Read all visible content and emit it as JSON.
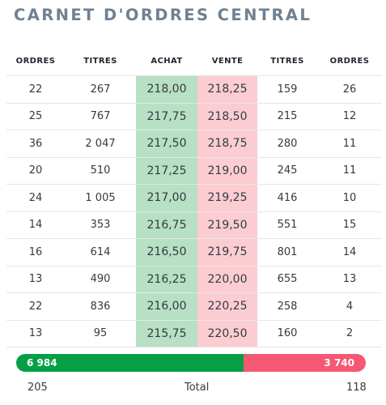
{
  "title": "CARNET D'ORDRES CENTRAL",
  "headers": [
    "ORDRES",
    "TITRES",
    "ACHAT",
    "VENTE",
    "TITRES",
    "ORDRES"
  ],
  "rows": [
    {
      "buy_orders": "22",
      "buy_qty": "267",
      "bid": "218,00",
      "ask": "218,25",
      "sell_qty": "159",
      "sell_orders": "26"
    },
    {
      "buy_orders": "25",
      "buy_qty": "767",
      "bid": "217,75",
      "ask": "218,50",
      "sell_qty": "215",
      "sell_orders": "12"
    },
    {
      "buy_orders": "36",
      "buy_qty": "2 047",
      "bid": "217,50",
      "ask": "218,75",
      "sell_qty": "280",
      "sell_orders": "11"
    },
    {
      "buy_orders": "20",
      "buy_qty": "510",
      "bid": "217,25",
      "ask": "219,00",
      "sell_qty": "245",
      "sell_orders": "11"
    },
    {
      "buy_orders": "24",
      "buy_qty": "1 005",
      "bid": "217,00",
      "ask": "219,25",
      "sell_qty": "416",
      "sell_orders": "10"
    },
    {
      "buy_orders": "14",
      "buy_qty": "353",
      "bid": "216,75",
      "ask": "219,50",
      "sell_qty": "551",
      "sell_orders": "15"
    },
    {
      "buy_orders": "16",
      "buy_qty": "614",
      "bid": "216,50",
      "ask": "219,75",
      "sell_qty": "801",
      "sell_orders": "14"
    },
    {
      "buy_orders": "13",
      "buy_qty": "490",
      "bid": "216,25",
      "ask": "220,00",
      "sell_qty": "655",
      "sell_orders": "13"
    },
    {
      "buy_orders": "22",
      "buy_qty": "836",
      "bid": "216,00",
      "ask": "220,25",
      "sell_qty": "258",
      "sell_orders": "4"
    },
    {
      "buy_orders": "13",
      "buy_qty": "95",
      "bid": "215,75",
      "ask": "220,50",
      "sell_qty": "160",
      "sell_orders": "2"
    }
  ],
  "volume": {
    "buy_total": "6 984",
    "sell_total": "3 740",
    "buy_share": 0.6512
  },
  "totals": {
    "buy_orders": "205",
    "label": "Total",
    "sell_orders": "118"
  },
  "colors": {
    "title": "#6e8193",
    "bid_bg": "#b8e0c4",
    "ask_bg": "#fbcdd3",
    "buy_bar": "#079f45",
    "sell_bar": "#f55872"
  }
}
